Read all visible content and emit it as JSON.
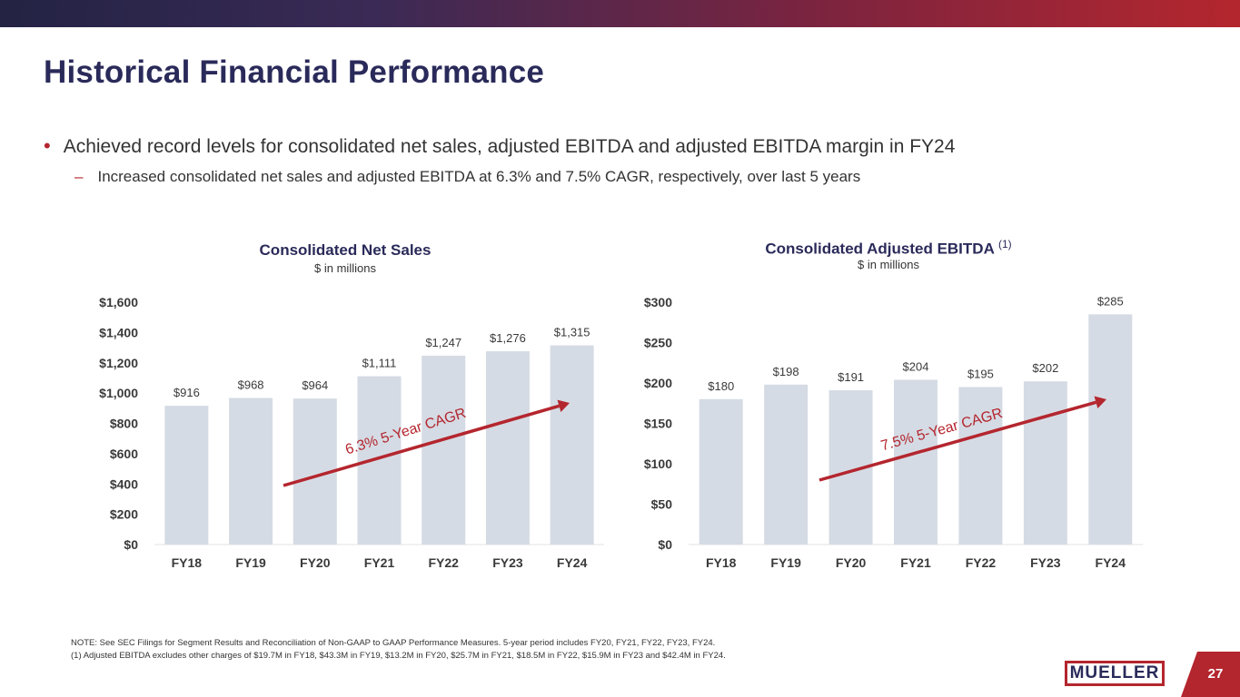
{
  "header": {
    "title": "Historical Financial Performance"
  },
  "bullets": {
    "main": "Achieved record levels for consolidated net sales, adjusted EBITDA and adjusted EBITDA margin in FY24",
    "sub": "Increased consolidated net sales and adjusted EBITDA at 6.3% and 7.5% CAGR, respectively, over last 5 years"
  },
  "chart_data": [
    {
      "type": "bar",
      "title": "Consolidated Net Sales",
      "subtitle": "$ in millions",
      "categories": [
        "FY18",
        "FY19",
        "FY20",
        "FY21",
        "FY22",
        "FY23",
        "FY24"
      ],
      "values": [
        916,
        968,
        964,
        1111,
        1247,
        1276,
        1315
      ],
      "data_labels": [
        "$916",
        "$968",
        "$964",
        "$1,111",
        "$1,247",
        "$1,276",
        "$1,315"
      ],
      "yticks": [
        0,
        200,
        400,
        600,
        800,
        1000,
        1200,
        1400,
        1600
      ],
      "ytick_labels": [
        "$0",
        "$200",
        "$400",
        "$600",
        "$800",
        "$1,000",
        "$1,200",
        "$1,400",
        "$1,600"
      ],
      "ylim": [
        0,
        1600
      ],
      "annotation": "6.3% 5-Year CAGR",
      "bar_color": "#d5dbe4",
      "arrow_color": "#b4262e"
    },
    {
      "type": "bar",
      "title": "Consolidated Adjusted EBITDA",
      "title_sup": "(1)",
      "subtitle": "$ in millions",
      "categories": [
        "FY18",
        "FY19",
        "FY20",
        "FY21",
        "FY22",
        "FY23",
        "FY24"
      ],
      "values": [
        180,
        198,
        191,
        204,
        195,
        202,
        285
      ],
      "data_labels": [
        "$180",
        "$198",
        "$191",
        "$204",
        "$195",
        "$202",
        "$285"
      ],
      "yticks": [
        0,
        50,
        100,
        150,
        200,
        250,
        300
      ],
      "ytick_labels": [
        "$0",
        "$50",
        "$100",
        "$150",
        "$200",
        "$250",
        "$300"
      ],
      "ylim": [
        0,
        300
      ],
      "annotation": "7.5% 5-Year CAGR",
      "bar_color": "#d5dbe4",
      "arrow_color": "#b4262e"
    }
  ],
  "notes": {
    "note": "NOTE:  See SEC Filings for Segment Results and Reconciliation of Non-GAAP to GAAP Performance Measures. 5-year period includes FY20, FY21, FY22, FY23, FY24.",
    "footnote": "(1)  Adjusted EBITDA excludes other charges of $19.7M in FY18, $43.3M in FY19, $13.2M in FY20, $25.7M in FY21, $18.5M in FY22, $15.9M in FY23 and $42.4M in FY24."
  },
  "footer": {
    "logo_text": "MUELLER",
    "page_number": "27"
  },
  "colors": {
    "accent": "#b4262e",
    "navy": "#2a2a5a"
  }
}
